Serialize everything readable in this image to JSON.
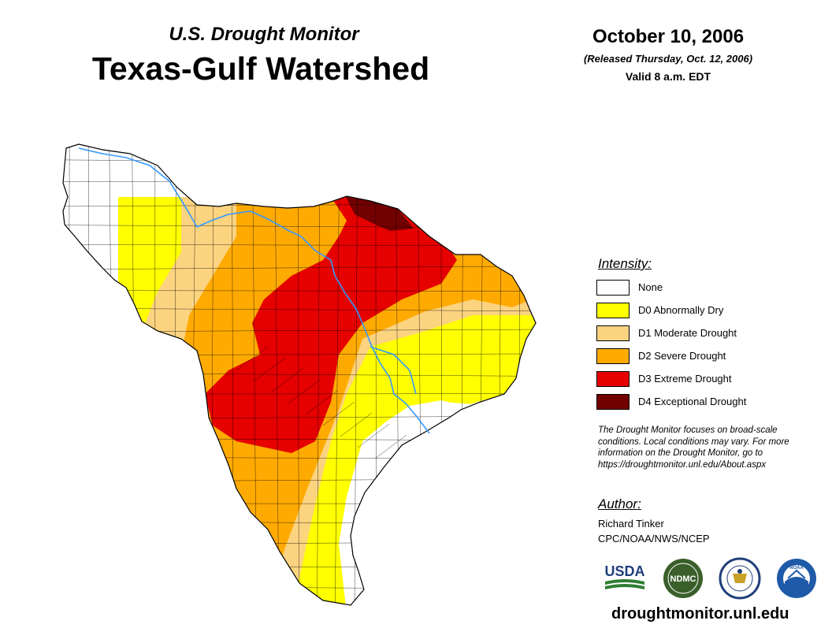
{
  "header": {
    "monitor": "U.S. Drought Monitor",
    "region": "Texas-Gulf Watershed"
  },
  "date": {
    "main": "October 10, 2006",
    "released": "(Released Thursday, Oct. 12, 2006)",
    "valid": "Valid 8 a.m. EDT"
  },
  "legend": {
    "heading": "Intensity:",
    "items": [
      {
        "label": "None",
        "color": "#ffffff"
      },
      {
        "label": "D0 Abnormally Dry",
        "color": "#ffff00"
      },
      {
        "label": "D1 Moderate Drought",
        "color": "#fcd37f"
      },
      {
        "label": "D2 Severe Drought",
        "color": "#ffaa00"
      },
      {
        "label": "D3 Extreme Drought",
        "color": "#e60000"
      },
      {
        "label": "D4 Exceptional Drought",
        "color": "#730000"
      }
    ]
  },
  "disclaimer": {
    "lines": [
      "The Drought Monitor focuses on broad-scale",
      "conditions. Local conditions may vary. For more",
      "information on the Drought Monitor, go to",
      "https://droughtmonitor.unl.edu/About.aspx"
    ]
  },
  "author": {
    "heading": "Author:",
    "name": "Richard Tinker",
    "org": "CPC/NOAA/NWS/NCEP"
  },
  "logos": {
    "usda": "USDA",
    "ndmc": "NDMC",
    "noaa": "NOAA"
  },
  "website": "droughtmonitor.unl.edu",
  "colors": {
    "river": "#3399ff",
    "county_lines": "#000000"
  }
}
